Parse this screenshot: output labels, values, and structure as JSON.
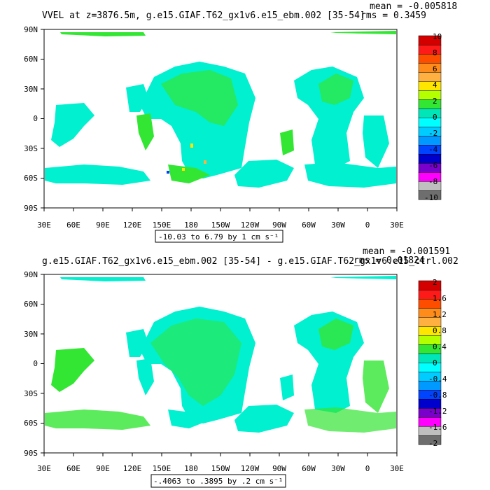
{
  "panels": [
    {
      "title": "VVEL at z=3876.5m, g.e15.GIAF.T62_gx1v6.e15_ebm.002 [35-54]",
      "stats_mean": "mean = -0.005818",
      "stats_rms": "rms = 0.3459",
      "range_label": "-10.03 to 6.79 by 1 cm s⁻¹",
      "colorbar_labels": [
        "10",
        "8",
        "6",
        "4",
        "2",
        "0",
        "-2",
        "-4",
        "-6",
        "-8",
        "-10"
      ]
    },
    {
      "title": "g.e15.GIAF.T62_gx1v6.e15_ebm.002 [35-54] - g.e15.GIAF.T62_gx1v6.e15_ctrl.002",
      "stats_mean": "mean = -0.001591",
      "stats_rms": "rms = 0.01824",
      "range_label": "-.4063 to .3895 by .2 cm s⁻¹",
      "colorbar_labels": [
        "2",
        "1.6",
        "1.2",
        "0.8",
        "0.4",
        "0",
        "-0.4",
        "-0.8",
        "-1.2",
        "-1.6",
        "-2"
      ]
    }
  ],
  "axes": {
    "lat_labels": [
      "90N",
      "60N",
      "30N",
      "0",
      "30S",
      "60S",
      "90S"
    ],
    "lon_labels": [
      "30E",
      "60E",
      "90E",
      "120E",
      "150E",
      "180",
      "150W",
      "120W",
      "90W",
      "60W",
      "30W",
      "0",
      "30E"
    ]
  },
  "colors": {
    "colorbar": [
      "#d40000",
      "#ff1a1a",
      "#ff4d00",
      "#ff8c1a",
      "#ffb040",
      "#ffe600",
      "#b4ff00",
      "#33e633",
      "#00e6b8",
      "#00ffff",
      "#00ccff",
      "#0099ff",
      "#0044ff",
      "#0000cc",
      "#7a00cc",
      "#ff00ff",
      "#bfbfbf",
      "#6e6e6e"
    ],
    "field_main": "#00f0d0",
    "field_alt": "#33e633"
  }
}
